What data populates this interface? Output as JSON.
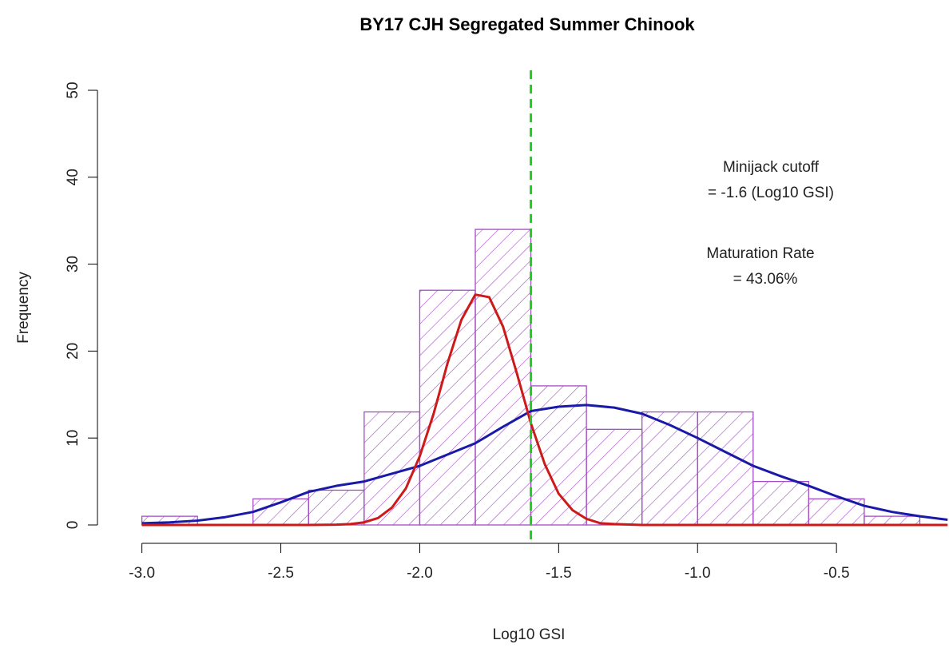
{
  "chart_data": {
    "type": "histogram",
    "title": "BY17 CJH Segregated Summer Chinook",
    "x_label": "Log10 GSI",
    "y_label": "Frequency",
    "bins": [
      -3.0,
      -2.8,
      -2.6,
      -2.4,
      -2.2,
      -2.0,
      -1.8,
      -1.6,
      -1.4,
      -1.2,
      -1.0,
      -0.8,
      -0.6,
      -0.4,
      -0.2
    ],
    "values": [
      1,
      0,
      3,
      4,
      13,
      27,
      34,
      16,
      11,
      13,
      13,
      5,
      3,
      1
    ],
    "color": "#a44cc4",
    "xlim": [
      -3.16,
      -0.095
    ],
    "ylim": [
      0,
      50
    ],
    "xticks": [
      {
        "value": -3,
        "label": "-3.0"
      },
      -2.5,
      {
        "value": -2,
        "label": "-2.0"
      },
      -1.5,
      {
        "value": -1,
        "label": "-1.0"
      },
      -0.5
    ],
    "yticks": [
      0,
      10,
      20,
      30,
      40,
      50
    ],
    "cutoff": -1.6,
    "cutoff_color": "#22cc22",
    "curves": [
      {
        "color": "#1a1aa8",
        "x": [
          -3.0,
          -2.9,
          -2.8,
          -2.7,
          -2.6,
          -2.5,
          -2.4,
          -2.3,
          -2.2,
          -2.1,
          -2.0,
          -1.9,
          -1.8,
          -1.7,
          -1.6,
          -1.5,
          -1.4,
          -1.3,
          -1.2,
          -1.1,
          -1.0,
          -0.9,
          -0.8,
          -0.7,
          -0.6,
          -0.5,
          -0.4,
          -0.3,
          -0.2,
          -0.1
        ],
        "values": [
          0.2,
          0.3,
          0.5,
          0.9,
          1.5,
          2.6,
          3.8,
          4.5,
          5.0,
          5.9,
          6.8,
          8.1,
          9.4,
          11.3,
          13.1,
          13.6,
          13.8,
          13.5,
          12.8,
          11.5,
          10.0,
          8.4,
          6.8,
          5.6,
          4.5,
          3.3,
          2.2,
          1.5,
          1.0,
          0.6
        ]
      },
      {
        "color": "#cc1a1a",
        "x": [
          -3.0,
          -2.4,
          -2.3,
          -2.25,
          -2.2,
          -2.15,
          -2.1,
          -2.05,
          -2.0,
          -1.95,
          -1.9,
          -1.85,
          -1.8,
          -1.75,
          -1.7,
          -1.65,
          -1.6,
          -1.55,
          -1.5,
          -1.45,
          -1.4,
          -1.35,
          -1.3,
          -1.2,
          -0.1
        ],
        "values": [
          0,
          0,
          0.03,
          0.1,
          0.3,
          0.8,
          2.0,
          4.2,
          7.9,
          12.8,
          18.6,
          23.6,
          26.5,
          26.2,
          22.8,
          17.4,
          11.7,
          7.0,
          3.6,
          1.7,
          0.7,
          0.2,
          0.1,
          0,
          0
        ]
      }
    ],
    "annotations": [
      "Minijack cutoff",
      "= -1.6 (Log10 GSI)",
      "Maturation Rate",
      "= 43.06%"
    ]
  }
}
